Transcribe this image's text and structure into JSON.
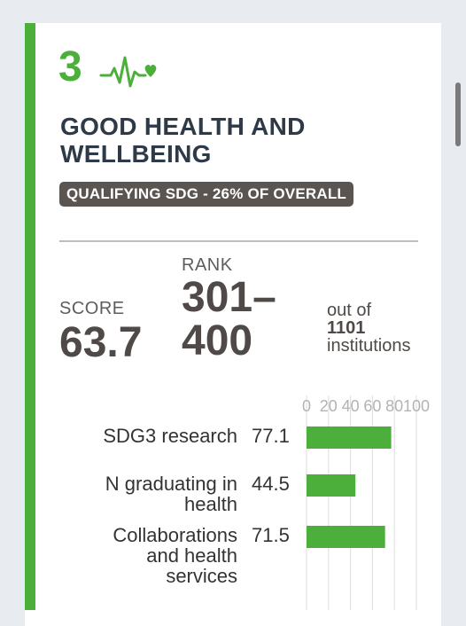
{
  "sdg": {
    "number": "3",
    "title_line1": "GOOD HEALTH AND",
    "title_line2": "WELLBEING",
    "badge": "QUALIFYING SDG - 26% OF OVERALL",
    "icon": "heartbeat-heart-icon",
    "accent_color": "#4caf3c"
  },
  "score": {
    "label": "SCORE",
    "value": "63.7"
  },
  "rank": {
    "label": "RANK",
    "line1": "301–",
    "line2": "400",
    "outof_label": "out of",
    "count": "1101",
    "institutions_label": "institutions"
  },
  "chart_data": {
    "type": "bar",
    "orientation": "horizontal",
    "categories": [
      "SDG3 research",
      "N graduating in health",
      "Collaborations and health services"
    ],
    "category_lines": [
      [
        "SDG3 research"
      ],
      [
        "N graduating in",
        "health"
      ],
      [
        "Collaborations",
        "and health",
        "services"
      ]
    ],
    "values": [
      77.1,
      44.5,
      71.5
    ],
    "value_labels": [
      "77.1",
      "44.5",
      "71.5"
    ],
    "xlim": [
      0,
      100
    ],
    "ticks": [
      "0",
      "20",
      "40",
      "60",
      "80",
      "100"
    ],
    "bar_color": "#4caf3c",
    "grid": true
  }
}
